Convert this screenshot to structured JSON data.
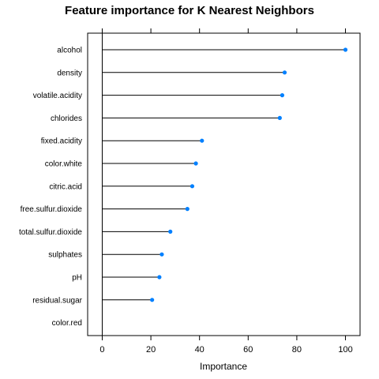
{
  "chart_data": {
    "type": "dotplot",
    "title": "Feature importance for K Nearest Neighbors",
    "xlabel": "Importance",
    "ylabel": "",
    "xlim": [
      -6,
      106
    ],
    "xticks": [
      0,
      20,
      40,
      60,
      80,
      100
    ],
    "xtick_labels": [
      "0",
      "20",
      "40",
      "60",
      "80",
      "100"
    ],
    "categories": [
      "alcohol",
      "density",
      "volatile.acidity",
      "chlorides",
      "fixed.acidity",
      "color.white",
      "citric.acid",
      "free.sulfur.dioxide",
      "total.sulfur.dioxide",
      "sulphates",
      "pH",
      "residual.sugar",
      "color.red"
    ],
    "values": [
      100,
      75,
      74,
      73,
      41,
      38.5,
      37,
      35,
      28,
      24.5,
      23.5,
      20.5,
      0
    ],
    "grid": false,
    "colors": {
      "point": "#0080ff",
      "line": "#000000"
    }
  }
}
